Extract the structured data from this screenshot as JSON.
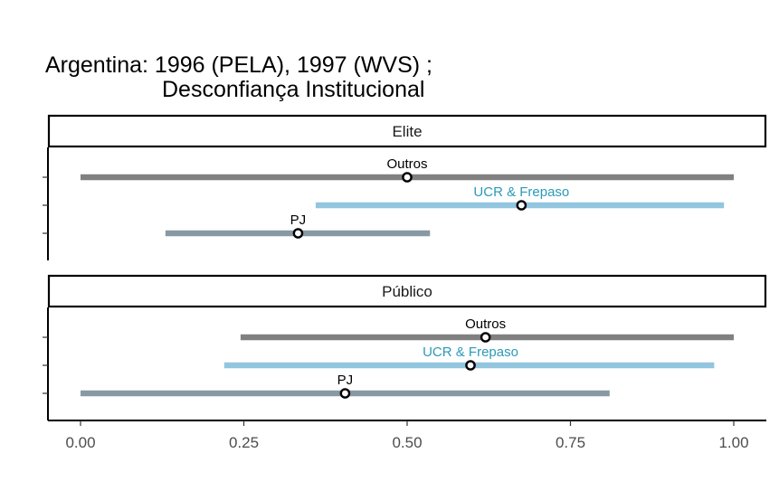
{
  "chart_data": {
    "type": "dot-range",
    "title_line1": "Argentina: 1996 (PELA), 1997 (WVS) ;",
    "title_line2": "Desconfiança Institucional",
    "xlabel": "",
    "ylabel": "",
    "xlim": [
      -0.05,
      1.05
    ],
    "x_ticks": [
      0.0,
      0.25,
      0.5,
      0.75,
      1.0
    ],
    "x_tick_labels": [
      "0.00",
      "0.25",
      "0.50",
      "0.75",
      "1.00"
    ],
    "grid": false,
    "legend": "none",
    "panels": [
      {
        "name": "Elite",
        "series": [
          {
            "label": "Outros",
            "estimate": 0.5,
            "low": 0.0,
            "high": 1.0,
            "color": "#808080",
            "label_color": "#000000"
          },
          {
            "label": "UCR & Frepaso",
            "estimate": 0.675,
            "low": 0.36,
            "high": 0.985,
            "color": "#92C5DE",
            "label_color": "#2B9AB8"
          },
          {
            "label": "PJ",
            "estimate": 0.333,
            "low": 0.13,
            "high": 0.535,
            "color": "#8899A4",
            "label_color": "#000000"
          }
        ]
      },
      {
        "name": "Público",
        "series": [
          {
            "label": "Outros",
            "estimate": 0.62,
            "low": 0.245,
            "high": 1.0,
            "color": "#808080",
            "label_color": "#000000"
          },
          {
            "label": "UCR & Frepaso",
            "estimate": 0.597,
            "low": 0.22,
            "high": 0.97,
            "color": "#92C5DE",
            "label_color": "#2B9AB8"
          },
          {
            "label": "PJ",
            "estimate": 0.405,
            "low": 0.0,
            "high": 0.81,
            "color": "#8899A4",
            "label_color": "#000000"
          }
        ]
      }
    ]
  }
}
